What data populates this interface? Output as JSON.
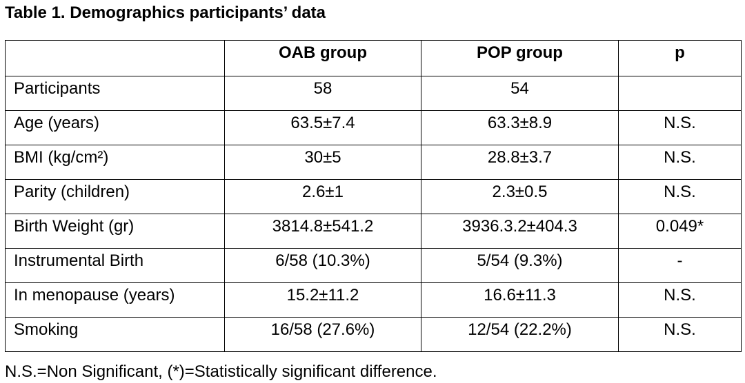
{
  "title": "Table 1. Demographics participants’ data",
  "table": {
    "headers": [
      "",
      "OAB group",
      "POP group",
      "p"
    ],
    "rows": [
      {
        "label": "Participants",
        "oab": "58",
        "pop": "54",
        "p": ""
      },
      {
        "label": "Age (years)",
        "oab": "63.5±7.4",
        "pop": "63.3±8.9",
        "p": "N.S."
      },
      {
        "label": "BMI (kg/cm²)",
        "oab": "30±5",
        "pop": "28.8±3.7",
        "p": "N.S."
      },
      {
        "label": "Parity (children)",
        "oab": "2.6±1",
        "pop": "2.3±0.5",
        "p": "N.S."
      },
      {
        "label": "Birth Weight (gr)",
        "oab": "3814.8±541.2",
        "pop": "3936.3.2±404.3",
        "p": "0.049*"
      },
      {
        "label": "Instrumental Birth",
        "oab": "6/58 (10.3%)",
        "pop": "5/54 (9.3%)",
        "p": "-"
      },
      {
        "label": "In menopause (years)",
        "oab": "15.2±11.2",
        "pop": "16.6±11.3",
        "p": "N.S."
      },
      {
        "label": "Smoking",
        "oab": "16/58 (27.6%)",
        "pop": "12/54 (22.2%)",
        "p": "N.S."
      }
    ]
  },
  "footnote": "N.S.=Non Significant, (*)=Statistically significant difference."
}
